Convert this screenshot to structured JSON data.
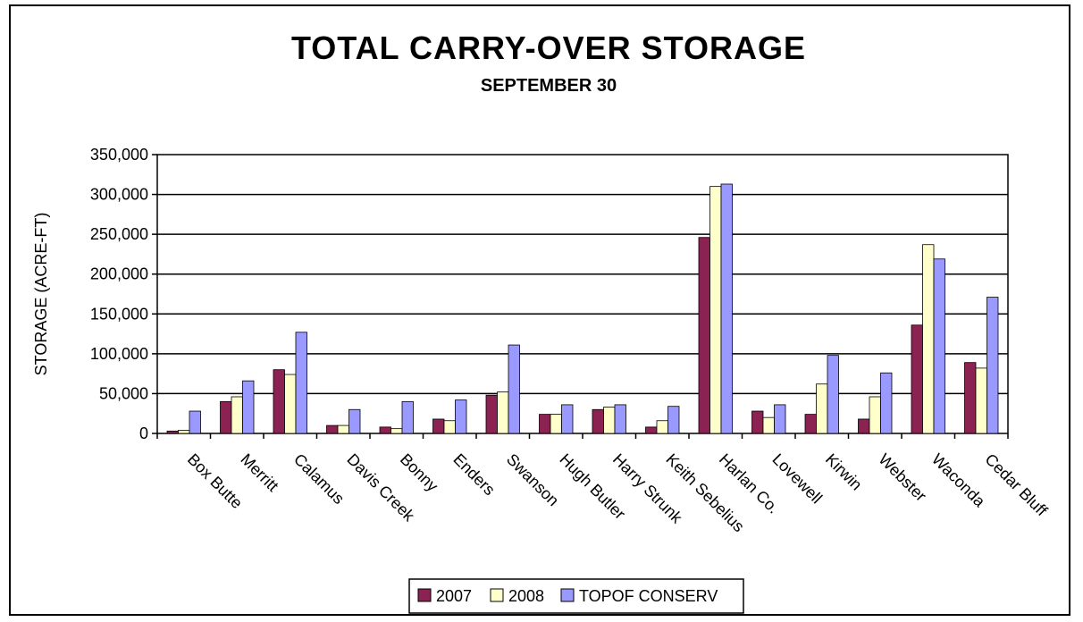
{
  "chart_data": {
    "type": "bar",
    "title": "TOTAL CARRY-OVER STORAGE",
    "subtitle": "SEPTEMBER 30",
    "xlabel": "",
    "ylabel": "STORAGE (ACRE-FT)",
    "ylim": [
      0,
      350000
    ],
    "ytick_values": [
      0,
      50000,
      100000,
      150000,
      200000,
      250000,
      300000,
      350000
    ],
    "ytick_labels": [
      "0",
      "50,000",
      "100,000",
      "150,000",
      "200,000",
      "250,000",
      "300,000",
      "350,000"
    ],
    "grid": true,
    "legend_position": "bottom-center",
    "categories": [
      "Box Butte",
      "Merritt",
      "Calamus",
      "Davis Creek",
      "Bonny",
      "Enders",
      "Swanson",
      "Hugh Butler",
      "Harry Strunk",
      "Keith Sebelius",
      "Harlan Co.",
      "Lovewell",
      "Kirwin",
      "Webster",
      "Waconda",
      "Cedar Bluff"
    ],
    "series": [
      {
        "name": "2007",
        "color": "#8B2252",
        "values": [
          3000,
          40000,
          80000,
          10000,
          8000,
          18000,
          48000,
          24000,
          30000,
          8000,
          246000,
          28000,
          24000,
          18000,
          136000,
          89000
        ]
      },
      {
        "name": "2008",
        "color": "#FFFFCC",
        "values": [
          4000,
          46000,
          74000,
          10000,
          6000,
          16000,
          52000,
          24000,
          33000,
          16000,
          310000,
          20000,
          62000,
          46000,
          237000,
          82000
        ]
      },
      {
        "name": "TOPOF CONSERV",
        "color": "#9999FF",
        "values": [
          28000,
          66000,
          127000,
          30000,
          40000,
          42000,
          111000,
          36000,
          36000,
          34000,
          313000,
          36000,
          98000,
          76000,
          219000,
          171000
        ]
      }
    ]
  }
}
